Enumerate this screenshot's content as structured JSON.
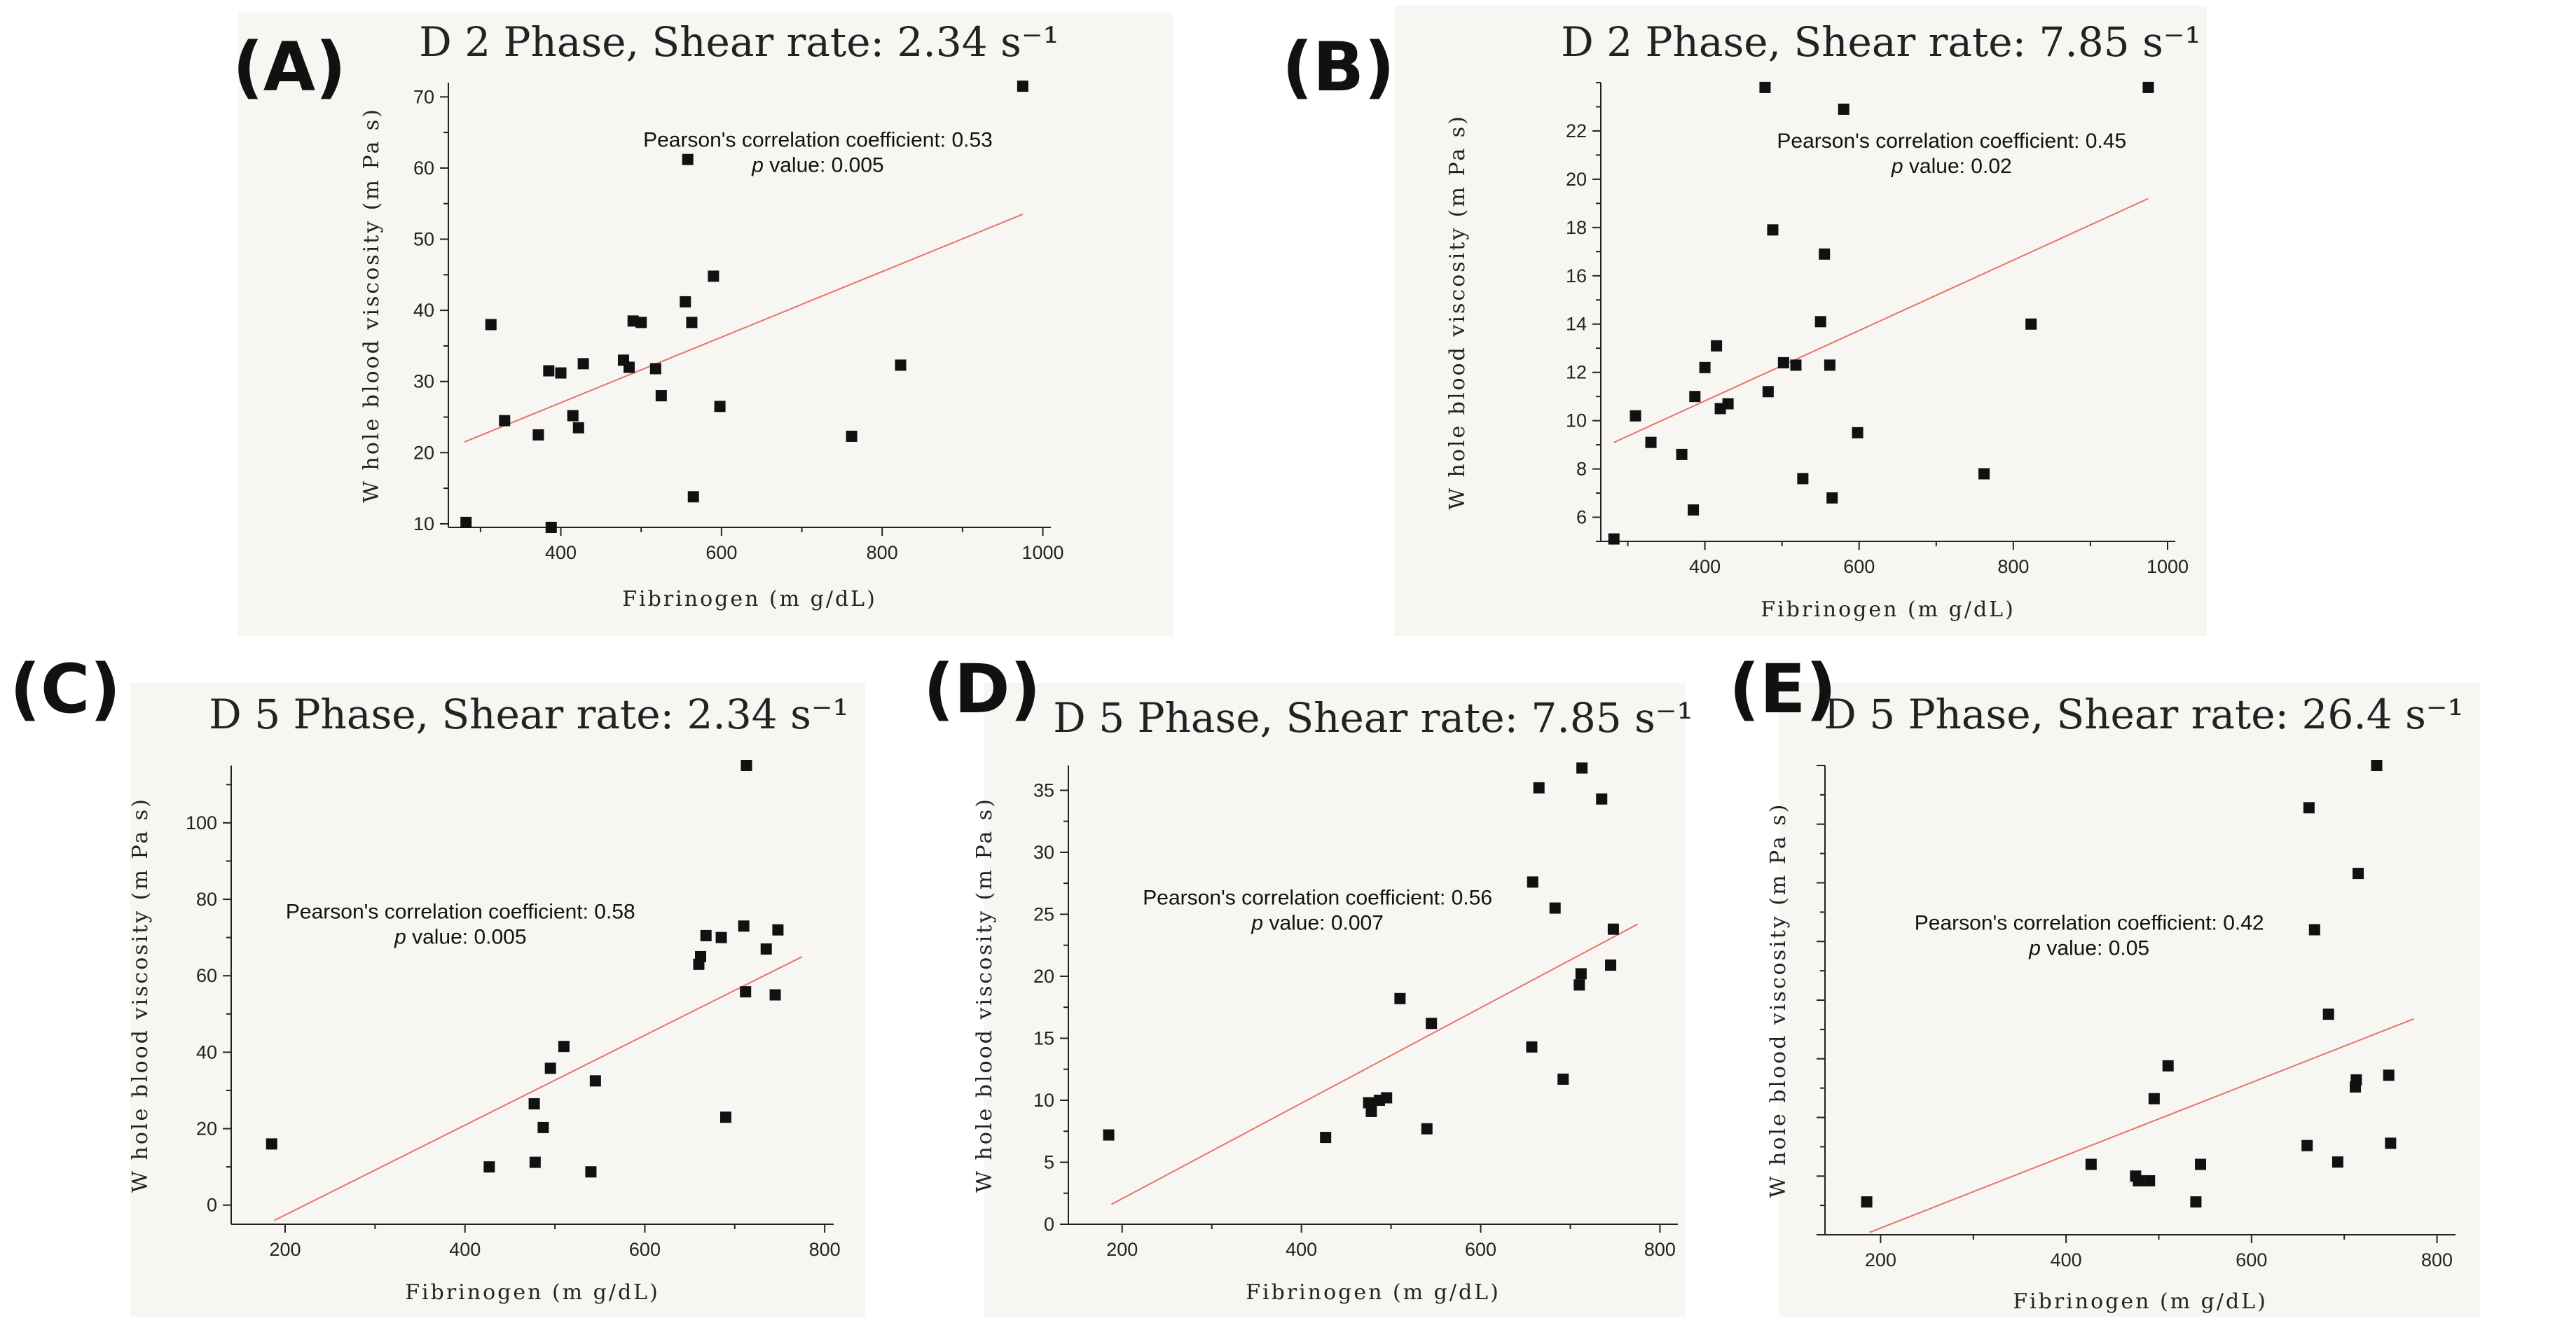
{
  "figure": {
    "panels": [
      "(A)",
      "(B)",
      "(C)",
      "(D)",
      "(E)"
    ]
  },
  "chart_data": [
    {
      "type": "scatter",
      "panel_label": "(A)",
      "title": "D 2 Phase, Shear rate: 2.34 s⁻¹",
      "xlabel": "Fibrinogen (m g/dL)",
      "ylabel": "W hole blood viscosity (m Pa s)",
      "xlim": [
        260,
        1010
      ],
      "ylim": [
        9.5,
        72
      ],
      "xticks": [
        400,
        600,
        800,
        1000
      ],
      "yticks": [
        10,
        20,
        30,
        40,
        50,
        60,
        70
      ],
      "annotation_line1": "Pearson's correlation coefficient: 0.53",
      "annotation_line2": "p value: 0.005",
      "annotation_anchor": [
        720,
        63
      ],
      "regression": [
        [
          280,
          21.5
        ],
        [
          975,
          53.5
        ]
      ],
      "points": [
        [
          282,
          10.2
        ],
        [
          313,
          38.0
        ],
        [
          330,
          24.5
        ],
        [
          372,
          22.5
        ],
        [
          385,
          31.5
        ],
        [
          388,
          9.5
        ],
        [
          400,
          31.2
        ],
        [
          415,
          25.2
        ],
        [
          422,
          23.5
        ],
        [
          428,
          32.5
        ],
        [
          478,
          33.0
        ],
        [
          485,
          32.0
        ],
        [
          490,
          38.5
        ],
        [
          500,
          38.3
        ],
        [
          518,
          31.8
        ],
        [
          525,
          28.0
        ],
        [
          555,
          41.2
        ],
        [
          558,
          61.2
        ],
        [
          563,
          38.3
        ],
        [
          565,
          13.8
        ],
        [
          590,
          44.8
        ],
        [
          598,
          26.5
        ],
        [
          762,
          22.3
        ],
        [
          823,
          32.3
        ],
        [
          975,
          71.5
        ]
      ]
    },
    {
      "type": "scatter",
      "panel_label": "(B)",
      "title": "D 2 Phase, Shear rate: 7.85 s⁻¹",
      "xlabel": "Fibrinogen (m g/dL)",
      "ylabel": "W hole blood viscosity (m Pa s)",
      "xlim": [
        265,
        1010
      ],
      "ylim": [
        5,
        24
      ],
      "xticks": [
        400,
        600,
        800,
        1000
      ],
      "yticks": [
        6,
        8,
        10,
        12,
        14,
        16,
        18,
        20,
        22
      ],
      "annotation_line1": "Pearson's correlation coefficient: 0.45",
      "annotation_line2": "p value: 0.02",
      "annotation_anchor": [
        720,
        21.3
      ],
      "regression": [
        [
          282,
          9.1
        ],
        [
          975,
          19.2
        ]
      ],
      "points": [
        [
          282,
          5.1
        ],
        [
          310,
          10.2
        ],
        [
          330,
          9.1
        ],
        [
          370,
          8.6
        ],
        [
          385,
          6.3
        ],
        [
          387,
          11.0
        ],
        [
          400,
          12.2
        ],
        [
          415,
          13.1
        ],
        [
          420,
          10.5
        ],
        [
          430,
          10.7
        ],
        [
          478,
          23.8
        ],
        [
          482,
          11.2
        ],
        [
          488,
          17.9
        ],
        [
          502,
          12.4
        ],
        [
          518,
          12.3
        ],
        [
          527,
          7.6
        ],
        [
          550,
          14.1
        ],
        [
          555,
          16.9
        ],
        [
          562,
          12.3
        ],
        [
          565,
          6.8
        ],
        [
          580,
          22.9
        ],
        [
          598,
          9.5
        ],
        [
          762,
          7.8
        ],
        [
          823,
          14.0
        ],
        [
          975,
          23.8
        ]
      ]
    },
    {
      "type": "scatter",
      "panel_label": "(C)",
      "title": "D 5 Phase, Shear rate: 2.34 s⁻¹",
      "xlabel": "Fibrinogen (m g/dL)",
      "ylabel": "W hole blood viscosity (m Pa s)",
      "xlim": [
        140,
        810
      ],
      "ylim": [
        -5,
        115
      ],
      "xticks": [
        200,
        400,
        600,
        800
      ],
      "yticks": [
        0,
        20,
        40,
        60,
        80,
        100
      ],
      "annotation_line1": "Pearson's correlation coefficient: 0.58",
      "annotation_line2": "p value: 0.005",
      "annotation_anchor": [
        395,
        75
      ],
      "regression": [
        [
          188,
          -4
        ],
        [
          775,
          65
        ]
      ],
      "points": [
        [
          185,
          16
        ],
        [
          427,
          10
        ],
        [
          477,
          26.5
        ],
        [
          478,
          11.2
        ],
        [
          487,
          20.3
        ],
        [
          495,
          35.8
        ],
        [
          510,
          41.5
        ],
        [
          540,
          8.7
        ],
        [
          545,
          32.5
        ],
        [
          660,
          63
        ],
        [
          662,
          65
        ],
        [
          668,
          70.5
        ],
        [
          685,
          70
        ],
        [
          690,
          23
        ],
        [
          710,
          73
        ],
        [
          712,
          55.8
        ],
        [
          713,
          115
        ],
        [
          735,
          67
        ],
        [
          745,
          55
        ],
        [
          748,
          72
        ]
      ]
    },
    {
      "type": "scatter",
      "panel_label": "(D)",
      "title": "D 5 Phase, Shear rate: 7.85 s⁻¹",
      "xlabel": "Fibrinogen (m g/dL)",
      "ylabel": "W hole blood viscosity (m Pa s)",
      "xlim": [
        140,
        820
      ],
      "ylim": [
        0,
        37
      ],
      "xticks": [
        200,
        400,
        600,
        800
      ],
      "yticks": [
        0,
        5,
        10,
        15,
        20,
        25,
        30,
        35
      ],
      "annotation_line1": "Pearson's correlation coefficient: 0.56",
      "annotation_line2": "p value: 0.007",
      "annotation_anchor": [
        418,
        25.8
      ],
      "regression": [
        [
          188,
          1.6
        ],
        [
          775,
          24.2
        ]
      ],
      "points": [
        [
          185,
          7.2
        ],
        [
          427,
          7.0
        ],
        [
          475,
          9.8
        ],
        [
          478,
          9.1
        ],
        [
          487,
          10.0
        ],
        [
          495,
          10.2
        ],
        [
          510,
          18.2
        ],
        [
          540,
          7.7
        ],
        [
          545,
          16.2
        ],
        [
          657,
          14.3
        ],
        [
          658,
          27.6
        ],
        [
          665,
          35.2
        ],
        [
          683,
          25.5
        ],
        [
          692,
          11.7
        ],
        [
          710,
          19.3
        ],
        [
          712,
          20.2
        ],
        [
          713,
          36.8
        ],
        [
          735,
          34.3
        ],
        [
          745,
          20.9
        ],
        [
          748,
          23.8
        ]
      ]
    },
    {
      "type": "scatter",
      "panel_label": "(E)",
      "title": "D 5 Phase, Shear rate: 26.4 s⁻¹",
      "xlabel": "Fibrinogen (m g/dL)",
      "ylabel": "W hole blood viscosity (m Pa s)",
      "xlim": [
        140,
        820
      ],
      "ylim": [
        0,
        100
      ],
      "xticks": [
        200,
        400,
        600,
        800
      ],
      "yticks": [],
      "annotation_line1": "Pearson's correlation coefficient: 0.42",
      "annotation_line2": "p value: 0.05",
      "annotation_anchor": [
        425,
        65
      ],
      "regression": [
        [
          188,
          0.5
        ],
        [
          775,
          46
        ]
      ],
      "points": [
        [
          185,
          7
        ],
        [
          427,
          15
        ],
        [
          475,
          12.5
        ],
        [
          478,
          11.5
        ],
        [
          490,
          11.5
        ],
        [
          495,
          29
        ],
        [
          510,
          36
        ],
        [
          540,
          7
        ],
        [
          545,
          15
        ],
        [
          660,
          19
        ],
        [
          662,
          91
        ],
        [
          668,
          65
        ],
        [
          683,
          47
        ],
        [
          693,
          15.5
        ],
        [
          712,
          31.5
        ],
        [
          713,
          33
        ],
        [
          715,
          77
        ],
        [
          735,
          100
        ],
        [
          748,
          34
        ],
        [
          750,
          19.5
        ]
      ]
    }
  ]
}
